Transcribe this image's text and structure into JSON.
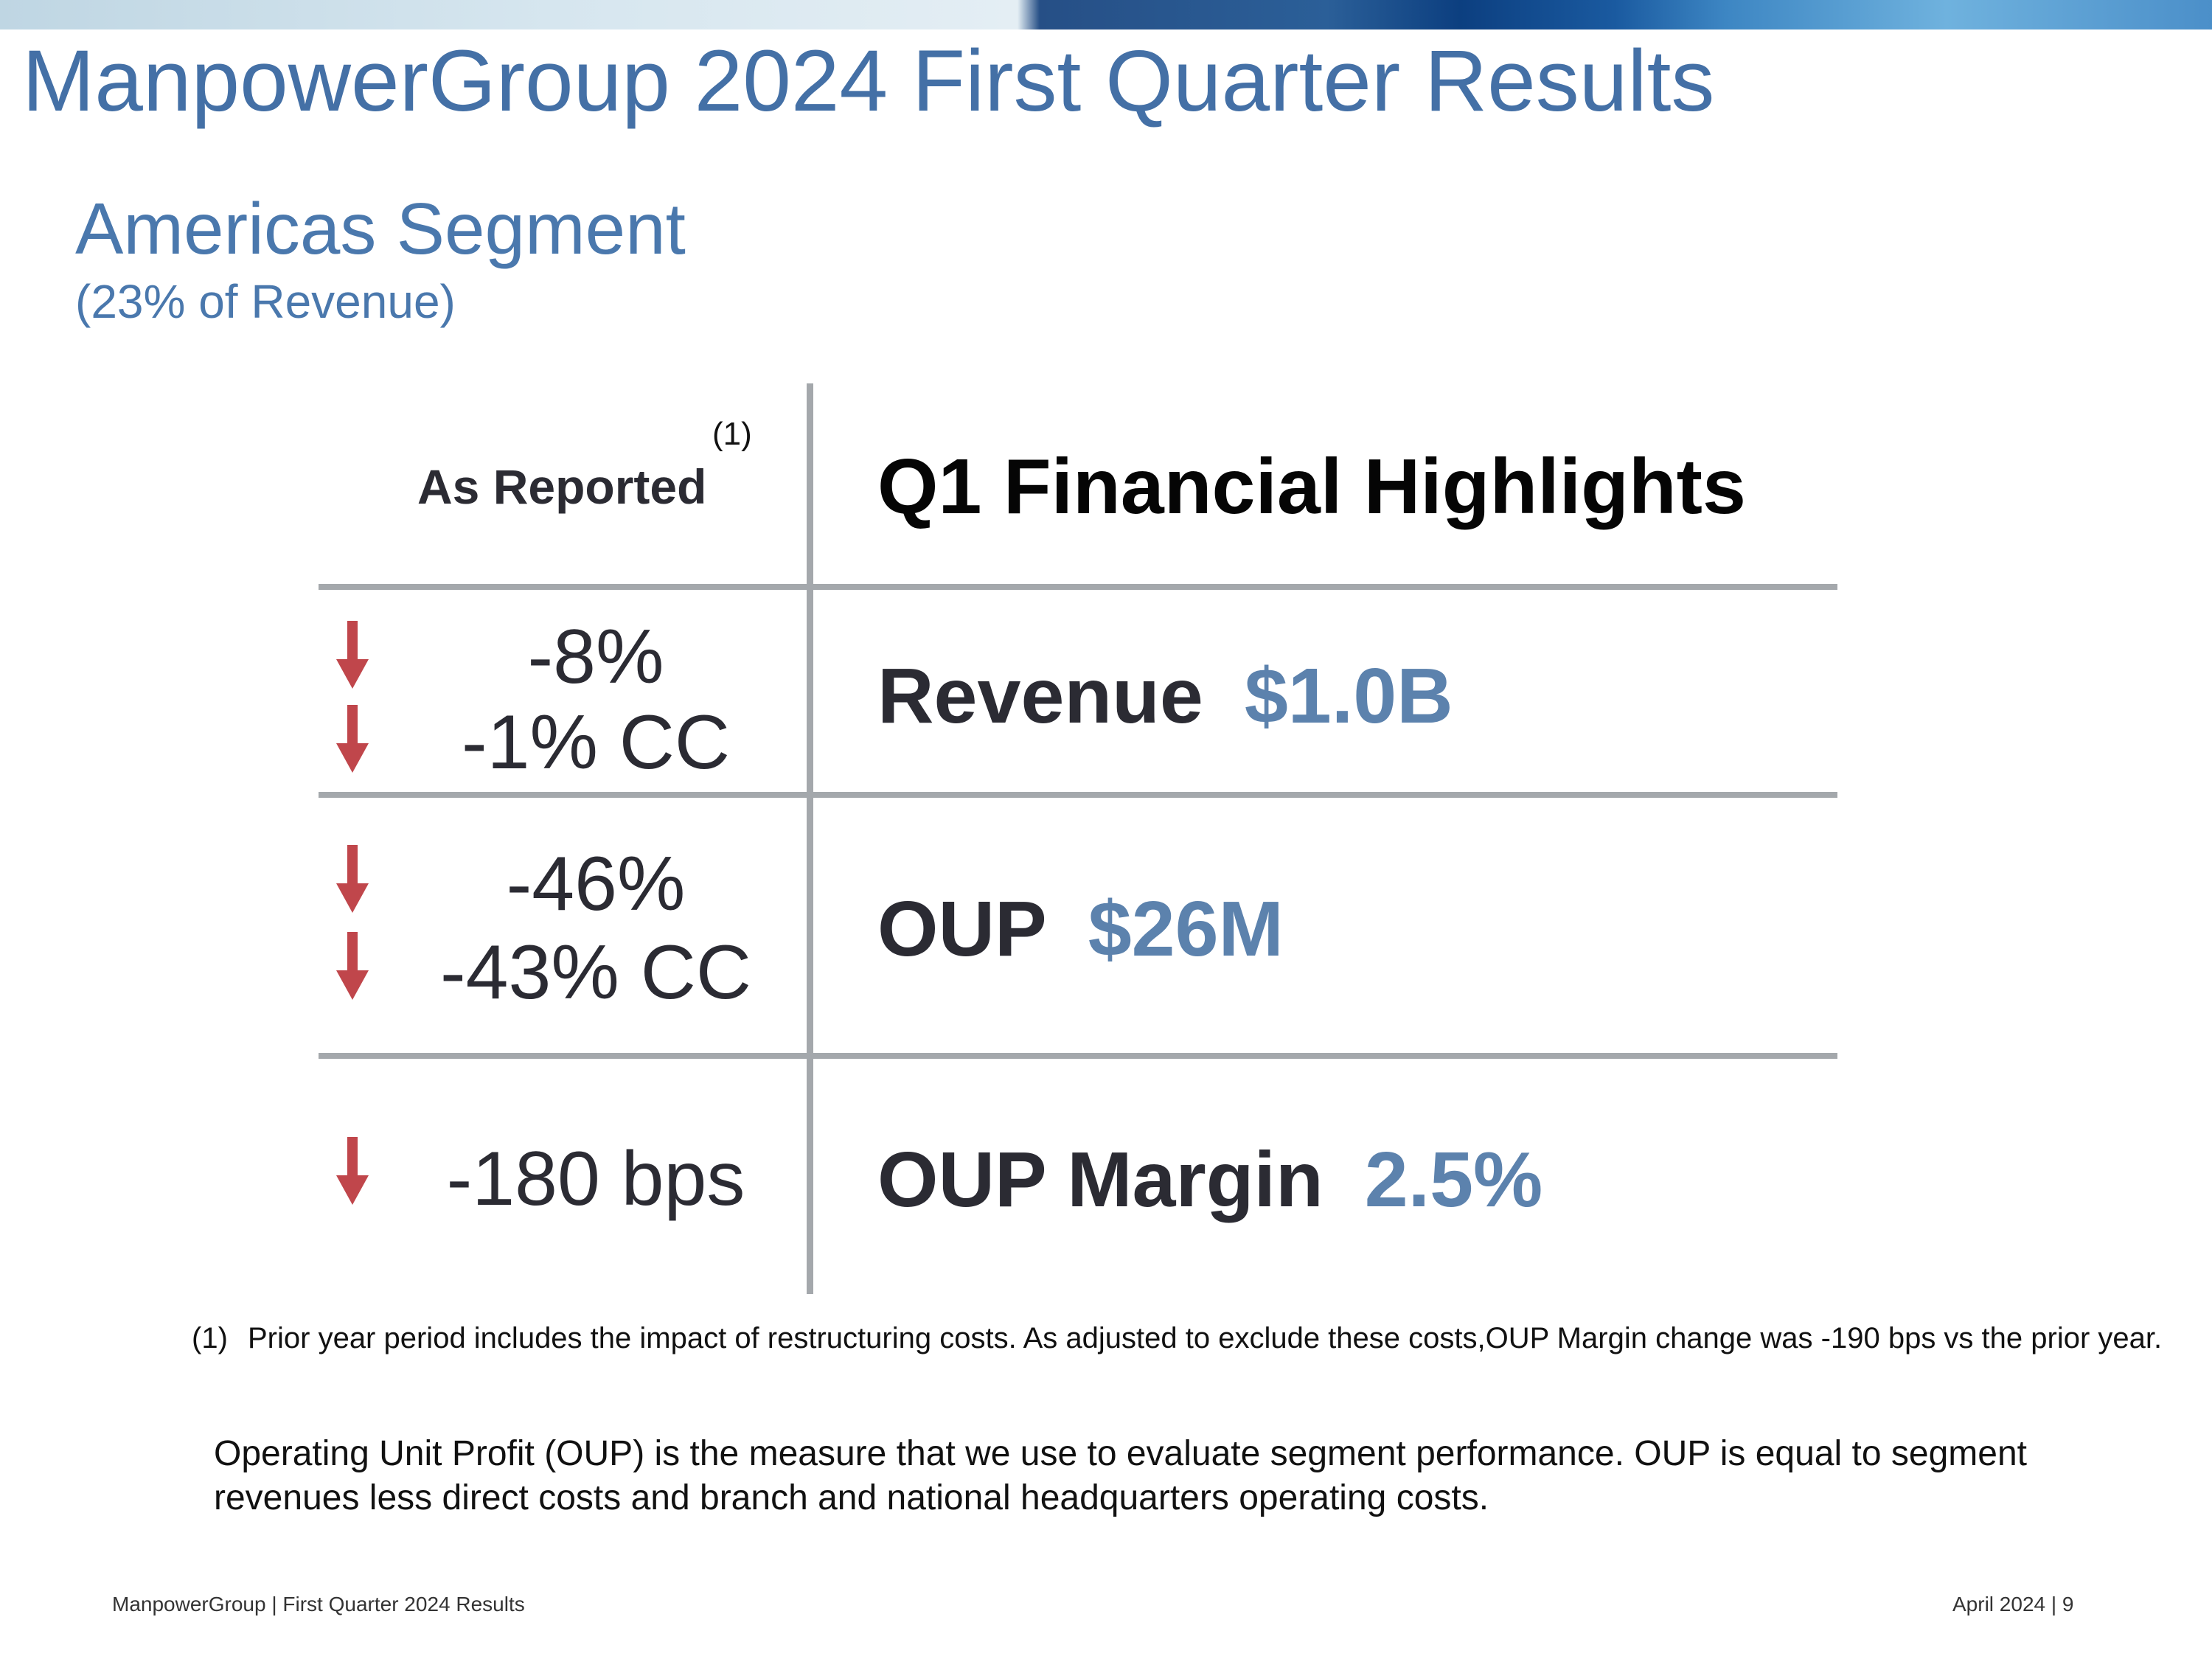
{
  "header": {
    "title": "ManpowerGroup 2024 First Quarter Results"
  },
  "segment": {
    "name": "Americas Segment",
    "revenue_share": "(23% of Revenue)"
  },
  "table": {
    "left_header": "As Reported",
    "footnote_marker": "(1)",
    "right_header": "Q1 Financial Highlights",
    "rows": [
      {
        "changes": [
          "-8%",
          "-1% CC"
        ],
        "metric_label": "Revenue",
        "metric_value": "$1.0B",
        "direction": "down"
      },
      {
        "changes": [
          "-46%",
          "-43% CC"
        ],
        "metric_label": "OUP",
        "metric_value": "$26M",
        "direction": "down"
      },
      {
        "changes": [
          "-180 bps"
        ],
        "metric_label": "OUP Margin",
        "metric_value": "2.5%",
        "direction": "down"
      }
    ]
  },
  "footnote": {
    "marker": "(1)",
    "text": "Prior year period includes the impact of restructuring costs. As adjusted to exclude these costs,OUP Margin change was -190 bps vs the prior year."
  },
  "definition": "Operating Unit Profit (OUP) is the measure that we use to evaluate segment performance.  OUP is equal to segment revenues less direct costs and branch and national headquarters operating costs.",
  "footer": {
    "left": "ManpowerGroup  |  First Quarter 2024 Results",
    "right": "April 2024   |   9"
  },
  "colors": {
    "title_blue": "#4470a6",
    "value_blue": "#5c82ad",
    "arrow_red": "#c0464b",
    "rule_gray": "#a4a8ac"
  },
  "icons": {
    "decline": "down-arrow-icon"
  }
}
